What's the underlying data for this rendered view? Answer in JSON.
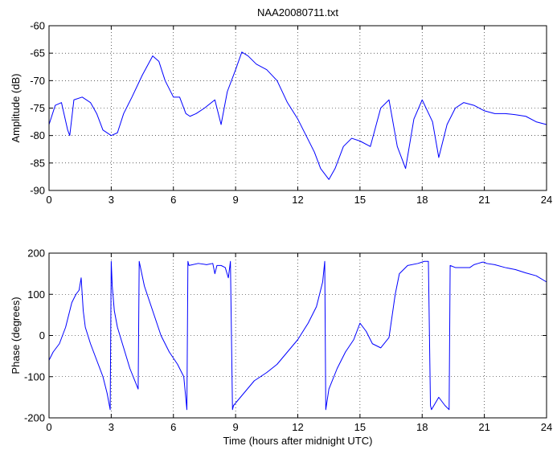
{
  "chart_data": [
    {
      "type": "line",
      "title": "NAA20080711.txt",
      "xlabel": "",
      "ylabel": "Amplitude (dB)",
      "xlim": [
        0,
        24
      ],
      "ylim": [
        -90,
        -60
      ],
      "xticks": [
        "0",
        "3",
        "6",
        "9",
        "12",
        "15",
        "18",
        "21",
        "24"
      ],
      "yticks": [
        "-60",
        "-65",
        "-70",
        "-75",
        "-80",
        "-85",
        "-90"
      ],
      "grid": "dotted",
      "line_color": "#0000ff",
      "x": [
        0,
        0.3,
        0.6,
        0.9,
        1.0,
        1.2,
        1.6,
        2.0,
        2.3,
        2.6,
        3.0,
        3.3,
        3.6,
        4.0,
        4.5,
        5.0,
        5.3,
        5.6,
        6.0,
        6.3,
        6.6,
        6.8,
        7.1,
        7.5,
        8.0,
        8.3,
        8.6,
        9.0,
        9.3,
        9.6,
        10.0,
        10.5,
        11.0,
        11.5,
        12.0,
        12.4,
        12.8,
        13.1,
        13.5,
        13.8,
        14.2,
        14.6,
        15.0,
        15.5,
        16.0,
        16.4,
        16.8,
        17.2,
        17.6,
        18.0,
        18.5,
        18.8,
        19.2,
        19.6,
        20.0,
        20.5,
        21.0,
        21.5,
        22.0,
        22.5,
        23.0,
        23.5,
        24.0
      ],
      "values": [
        -78,
        -74.5,
        -74,
        -79,
        -80,
        -73.5,
        -73,
        -74,
        -76,
        -79,
        -80,
        -79.5,
        -76,
        -73,
        -69,
        -65.5,
        -66.5,
        -70,
        -73,
        -73,
        -76,
        -76.5,
        -76,
        -75,
        -73.5,
        -78,
        -72,
        -68,
        -64.8,
        -65.5,
        -67,
        -68,
        -70,
        -74,
        -77,
        -80,
        -83,
        -86,
        -88,
        -86,
        -82,
        -80.5,
        -81,
        -82,
        -75,
        -73.5,
        -82,
        -86,
        -77,
        -73.5,
        -77.5,
        -84,
        -78,
        -75,
        -74,
        -74.5,
        -75.5,
        -76,
        -76,
        -76.2,
        -76.5,
        -77.5,
        -78
      ]
    },
    {
      "type": "line",
      "title": "",
      "xlabel": "Time (hours after midnight UTC)",
      "ylabel": "Phase (degrees)",
      "xlim": [
        0,
        24
      ],
      "ylim": [
        -200,
        200
      ],
      "xticks": [
        "0",
        "3",
        "6",
        "9",
        "12",
        "15",
        "18",
        "21",
        "24"
      ],
      "yticks": [
        "200",
        "100",
        "0",
        "-100",
        "-200"
      ],
      "grid": "dotted",
      "line_color": "#0000ff",
      "x": [
        0,
        0.2,
        0.5,
        0.8,
        1.1,
        1.3,
        1.45,
        1.55,
        1.6,
        1.65,
        1.75,
        2.0,
        2.3,
        2.6,
        2.8,
        2.95,
        3.0,
        3.05,
        3.15,
        3.3,
        3.6,
        3.9,
        4.3,
        4.35,
        4.6,
        5.0,
        5.4,
        5.8,
        6.2,
        6.5,
        6.65,
        6.7,
        6.75,
        7.2,
        7.6,
        7.9,
        8.0,
        8.1,
        8.3,
        8.5,
        8.65,
        8.75,
        8.85,
        8.9,
        9.4,
        9.9,
        10.5,
        11.0,
        11.5,
        12.0,
        12.5,
        12.9,
        13.2,
        13.3,
        13.35,
        13.5,
        13.9,
        14.3,
        14.7,
        15.0,
        15.3,
        15.6,
        16.0,
        16.4,
        16.7,
        16.9,
        17.3,
        17.8,
        18.1,
        18.3,
        18.4,
        18.45,
        18.8,
        19.1,
        19.3,
        19.35,
        19.6,
        20.0,
        20.3,
        20.5,
        20.7,
        20.9,
        21.0,
        21.1,
        21.5,
        22.0,
        22.5,
        23.0,
        23.5,
        24.0
      ],
      "values": [
        -60,
        -40,
        -20,
        20,
        80,
        100,
        110,
        140,
        100,
        60,
        20,
        -20,
        -60,
        -100,
        -140,
        -180,
        180,
        120,
        60,
        20,
        -30,
        -80,
        -130,
        180,
        120,
        60,
        0,
        -40,
        -70,
        -100,
        -180,
        180,
        170,
        175,
        172,
        175,
        150,
        170,
        170,
        165,
        140,
        180,
        -180,
        -170,
        -140,
        -110,
        -90,
        -70,
        -40,
        -10,
        30,
        70,
        130,
        180,
        -180,
        -130,
        -80,
        -40,
        -10,
        30,
        10,
        -20,
        -30,
        -5,
        100,
        150,
        170,
        175,
        180,
        180,
        -170,
        -180,
        -150,
        -170,
        -180,
        170,
        165,
        165,
        165,
        172,
        175,
        178,
        178,
        175,
        172,
        165,
        160,
        152,
        145,
        130
      ]
    }
  ]
}
